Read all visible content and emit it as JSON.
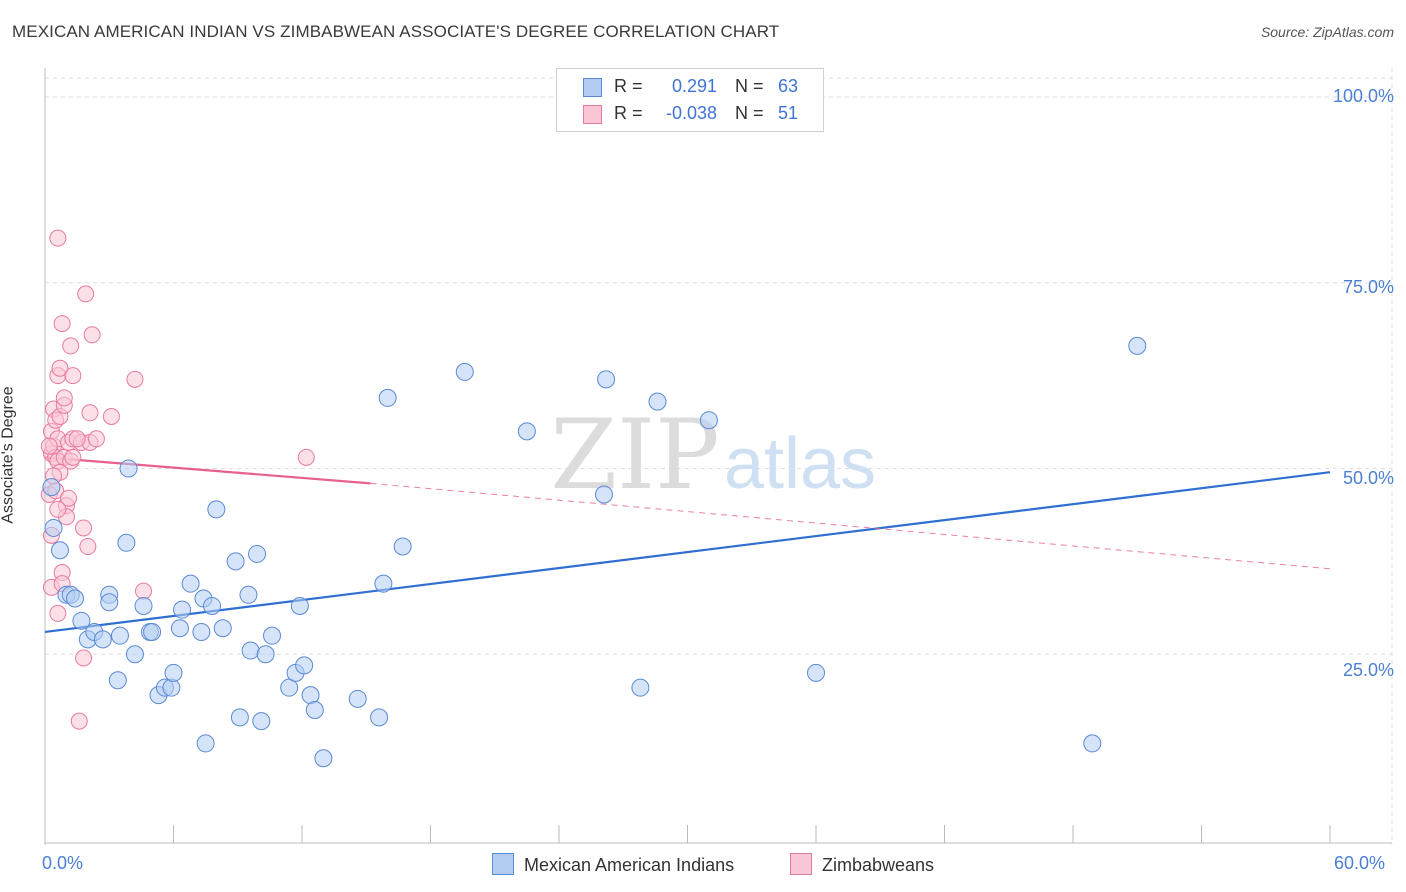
{
  "title": "MEXICAN AMERICAN INDIAN VS ZIMBABWEAN ASSOCIATE'S DEGREE CORRELATION CHART",
  "source": "Source: ZipAtlas.com",
  "watermark": {
    "zip": "ZIP",
    "atlas": "atlas"
  },
  "legend": {
    "series1": {
      "r_label": "R =",
      "r_value": "0.291",
      "n_label": "N =",
      "n_value": "63"
    },
    "series2": {
      "r_label": "R =",
      "r_value": "-0.038",
      "n_label": "N =",
      "n_value": "51"
    }
  },
  "colors": {
    "blue_fill": "#b3cdf2",
    "blue_stroke": "#5b8ad6",
    "blue_line": "#2f6fd1",
    "pink_fill": "#f9c6d6",
    "pink_stroke": "#e87a9e",
    "pink_line": "#e8608f",
    "tick_text": "#4a7fd4",
    "grid": "#dddddd"
  },
  "chart_data": {
    "type": "scatter",
    "title": "MEXICAN AMERICAN INDIAN VS ZIMBABWEAN ASSOCIATE'S DEGREE CORRELATION CHART",
    "xlabel": "",
    "ylabel": "Associate's Degree",
    "xlim": [
      0,
      60
    ],
    "ylim": [
      0,
      100
    ],
    "x_tick_labels": [
      "0.0%",
      "60.0%"
    ],
    "y_tick_labels": [
      "100.0%",
      "75.0%",
      "50.0%",
      "25.0%"
    ],
    "y_ticks": [
      100,
      75,
      50,
      25
    ],
    "series": [
      {
        "name": "Mexican American Indians",
        "color": "#5b8ad6",
        "trend": {
          "x": [
            0,
            60
          ],
          "y": [
            28.0,
            49.5
          ]
        },
        "points": [
          [
            0.3,
            47.5
          ],
          [
            0.4,
            42.0
          ],
          [
            0.7,
            39.0
          ],
          [
            1.0,
            33.0
          ],
          [
            1.2,
            33.0
          ],
          [
            1.4,
            32.5
          ],
          [
            1.7,
            29.5
          ],
          [
            2.0,
            27.0
          ],
          [
            2.3,
            28.0
          ],
          [
            2.7,
            27.0
          ],
          [
            3.0,
            33.0
          ],
          [
            3.0,
            32.0
          ],
          [
            3.4,
            21.5
          ],
          [
            3.5,
            27.5
          ],
          [
            3.8,
            40.0
          ],
          [
            3.9,
            50.0
          ],
          [
            4.2,
            25.0
          ],
          [
            4.6,
            31.5
          ],
          [
            4.9,
            28.0
          ],
          [
            5.0,
            28.0
          ],
          [
            5.3,
            19.5
          ],
          [
            5.6,
            20.5
          ],
          [
            5.9,
            20.5
          ],
          [
            6.0,
            22.5
          ],
          [
            6.3,
            28.5
          ],
          [
            6.4,
            31.0
          ],
          [
            6.8,
            34.5
          ],
          [
            7.3,
            28.0
          ],
          [
            7.4,
            32.5
          ],
          [
            7.5,
            13.0
          ],
          [
            7.8,
            31.5
          ],
          [
            8.0,
            44.5
          ],
          [
            8.3,
            28.5
          ],
          [
            8.9,
            37.5
          ],
          [
            9.1,
            16.5
          ],
          [
            9.5,
            33.0
          ],
          [
            9.6,
            25.5
          ],
          [
            9.9,
            38.5
          ],
          [
            10.1,
            16.0
          ],
          [
            10.3,
            25.0
          ],
          [
            10.6,
            27.5
          ],
          [
            11.4,
            20.5
          ],
          [
            11.7,
            22.5
          ],
          [
            11.9,
            31.5
          ],
          [
            12.1,
            23.5
          ],
          [
            12.4,
            19.5
          ],
          [
            12.6,
            17.5
          ],
          [
            13.0,
            11.0
          ],
          [
            14.6,
            19.0
          ],
          [
            15.6,
            16.5
          ],
          [
            15.8,
            34.5
          ],
          [
            16.0,
            59.5
          ],
          [
            16.7,
            39.5
          ],
          [
            19.6,
            63.0
          ],
          [
            22.5,
            55.0
          ],
          [
            26.1,
            46.5
          ],
          [
            26.2,
            62.0
          ],
          [
            27.8,
            20.5
          ],
          [
            28.6,
            59.0
          ],
          [
            31.0,
            56.5
          ],
          [
            36.0,
            22.5
          ],
          [
            48.9,
            13.0
          ],
          [
            51.0,
            66.5
          ]
        ]
      },
      {
        "name": "Zimbabweans",
        "color": "#e87a9e",
        "trend": {
          "x": [
            0,
            15.2
          ],
          "y": [
            51.5,
            48.0
          ]
        },
        "trend_dashed": {
          "x": [
            15.2,
            60
          ],
          "y": [
            48.0,
            36.5
          ]
        },
        "points": [
          [
            0.2,
            46.5
          ],
          [
            0.3,
            55.0
          ],
          [
            0.3,
            52.0
          ],
          [
            0.3,
            41.0
          ],
          [
            0.3,
            34.0
          ],
          [
            0.4,
            58.0
          ],
          [
            0.4,
            53.0
          ],
          [
            0.5,
            56.5
          ],
          [
            0.5,
            51.5
          ],
          [
            0.5,
            47.0
          ],
          [
            0.6,
            81.0
          ],
          [
            0.6,
            62.5
          ],
          [
            0.6,
            54.0
          ],
          [
            0.6,
            51.0
          ],
          [
            0.6,
            30.5
          ],
          [
            0.7,
            63.5
          ],
          [
            0.7,
            57.0
          ],
          [
            0.7,
            49.5
          ],
          [
            0.8,
            69.5
          ],
          [
            0.8,
            36.0
          ],
          [
            0.8,
            34.5
          ],
          [
            0.9,
            58.5
          ],
          [
            0.9,
            51.5
          ],
          [
            1.0,
            45.0
          ],
          [
            1.0,
            43.5
          ],
          [
            1.1,
            53.5
          ],
          [
            1.1,
            46.0
          ],
          [
            1.2,
            66.5
          ],
          [
            1.2,
            51.0
          ],
          [
            1.3,
            54.0
          ],
          [
            1.3,
            62.5
          ],
          [
            1.3,
            51.5
          ],
          [
            1.6,
            16.0
          ],
          [
            1.7,
            53.5
          ],
          [
            1.8,
            42.0
          ],
          [
            1.8,
            24.5
          ],
          [
            1.9,
            73.5
          ],
          [
            2.0,
            39.5
          ],
          [
            2.1,
            57.5
          ],
          [
            2.1,
            53.5
          ],
          [
            2.2,
            68.0
          ],
          [
            2.4,
            54.0
          ],
          [
            3.1,
            57.0
          ],
          [
            4.2,
            62.0
          ],
          [
            4.6,
            33.5
          ],
          [
            12.2,
            51.5
          ],
          [
            0.2,
            53.0
          ],
          [
            0.4,
            49.0
          ],
          [
            0.6,
            44.5
          ],
          [
            0.9,
            59.5
          ],
          [
            1.5,
            54.0
          ]
        ]
      }
    ]
  }
}
